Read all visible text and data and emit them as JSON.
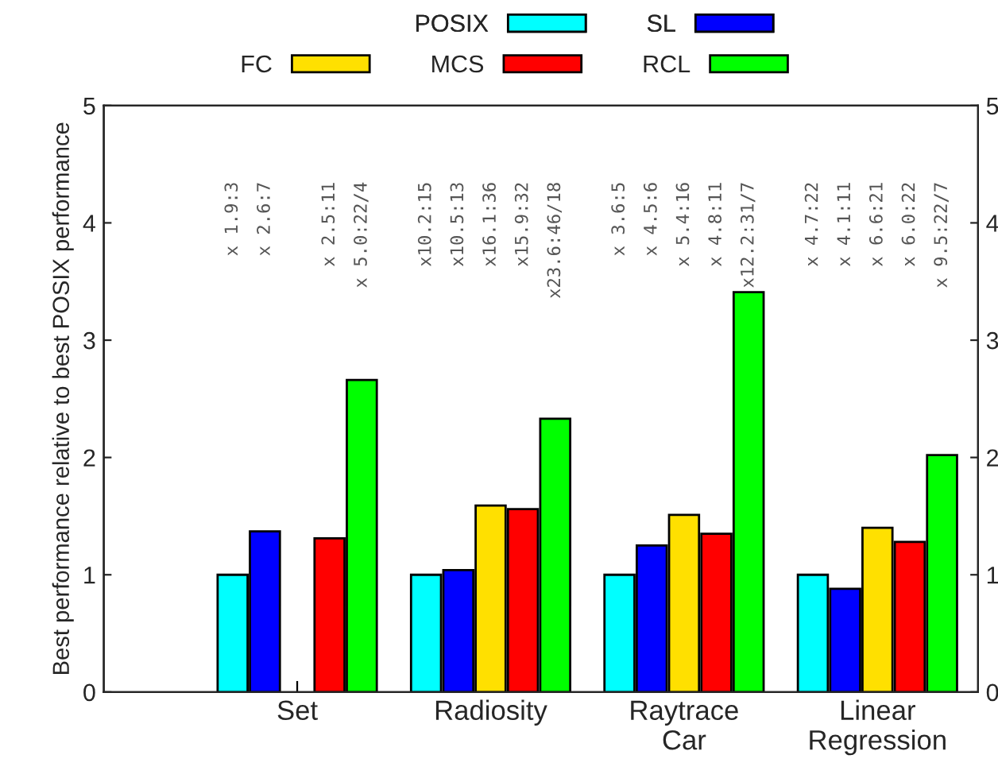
{
  "chart_data": {
    "type": "bar",
    "ylabel": "Best performance relative to best POSIX performance",
    "categories": [
      "Set",
      "Radiosity",
      "Raytrace\nCar",
      "Linear\nRegression"
    ],
    "series": [
      {
        "name": "POSIX",
        "color": "#00ffff",
        "values": [
          1.0,
          1.0,
          1.0,
          1.0
        ]
      },
      {
        "name": "SL",
        "color": "#0000ff",
        "values": [
          1.37,
          1.04,
          1.25,
          0.88
        ]
      },
      {
        "name": "FC",
        "color": "#ffe000",
        "values": [
          null,
          1.59,
          1.51,
          1.4
        ]
      },
      {
        "name": "MCS",
        "color": "#ff0000",
        "values": [
          1.31,
          1.56,
          1.35,
          1.28
        ]
      },
      {
        "name": "RCL",
        "color": "#00ff00",
        "values": [
          2.66,
          2.33,
          3.41,
          2.02
        ]
      }
    ],
    "annotations": [
      "x 1.9:3",
      "x 2.6:7",
      "x 2.5:11",
      "x 5.0:22/4",
      "x10.2:15",
      "x10.5:13",
      "x16.1:36",
      "x15.9:32",
      "x23.6:46/18",
      "x 3.6:5",
      "x 4.5:6",
      "x 5.4:16",
      "x 4.8:11",
      "x12.2:31/7",
      "x 4.7:22",
      "x 4.1:11",
      "x 6.6:21",
      "x 6.0:22",
      "x 9.5:22/7"
    ],
    "ylim": [
      0,
      5
    ],
    "yticks": [
      0,
      1,
      2,
      3,
      4,
      5
    ],
    "y2lim": [
      0,
      5
    ],
    "y2ticks": [
      0,
      1,
      2,
      3,
      4,
      5
    ],
    "legend": "top",
    "grid": false
  }
}
